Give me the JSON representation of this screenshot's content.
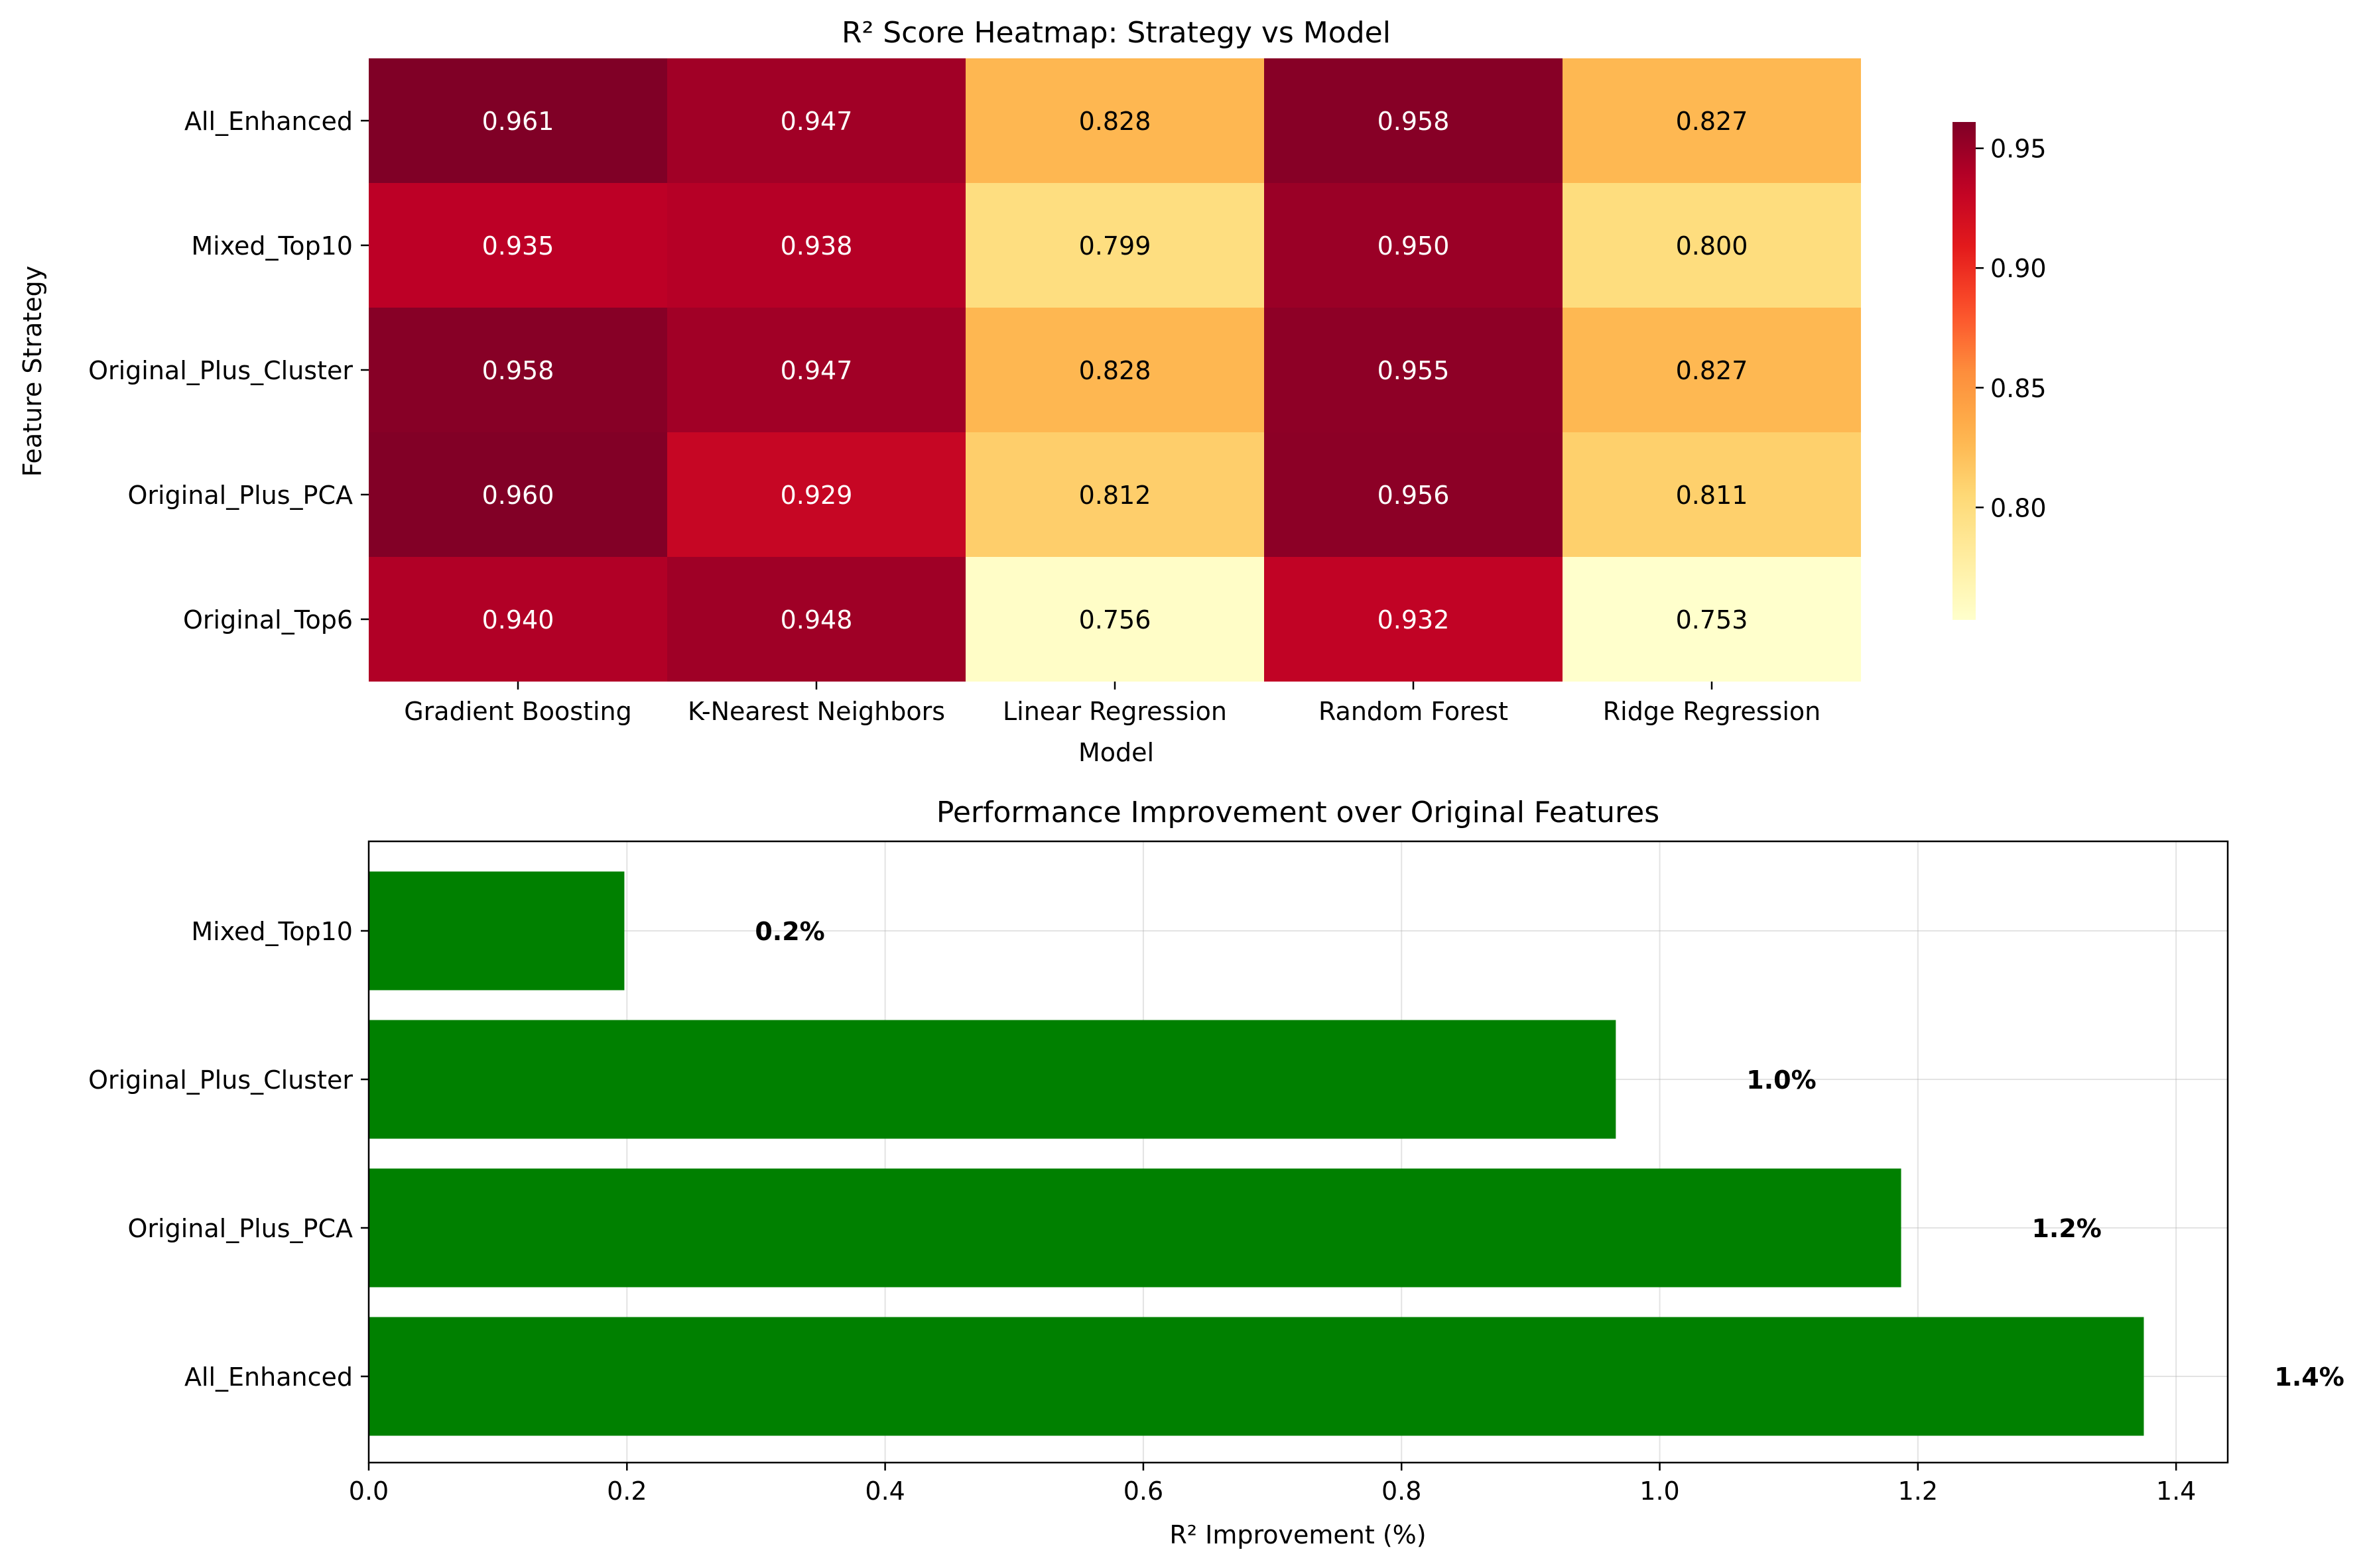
{
  "chart_data": [
    {
      "type": "heatmap",
      "title": "R² Score Heatmap: Strategy vs Model",
      "xlabel": "Model",
      "ylabel": "Feature Strategy",
      "columns": [
        "Gradient Boosting",
        "K-Nearest Neighbors",
        "Linear Regression",
        "Random Forest",
        "Ridge Regression"
      ],
      "rows": [
        "All_Enhanced",
        "Mixed_Top10",
        "Original_Plus_Cluster",
        "Original_Plus_PCA",
        "Original_Top6"
      ],
      "values": [
        [
          0.961,
          0.947,
          0.828,
          0.958,
          0.827
        ],
        [
          0.935,
          0.938,
          0.799,
          0.95,
          0.8
        ],
        [
          0.958,
          0.947,
          0.828,
          0.955,
          0.827
        ],
        [
          0.96,
          0.929,
          0.812,
          0.956,
          0.811
        ],
        [
          0.94,
          0.948,
          0.756,
          0.932,
          0.753
        ]
      ],
      "cell_labels": [
        [
          "0.961",
          "0.947",
          "0.828",
          "0.958",
          "0.827"
        ],
        [
          "0.935",
          "0.938",
          "0.799",
          "0.950",
          "0.800"
        ],
        [
          "0.958",
          "0.947",
          "0.828",
          "0.955",
          "0.827"
        ],
        [
          "0.960",
          "0.929",
          "0.812",
          "0.956",
          "0.811"
        ],
        [
          "0.940",
          "0.948",
          "0.756",
          "0.932",
          "0.753"
        ]
      ],
      "colormap": "YlOrRd",
      "colorbar": {
        "range": [
          0.753,
          0.961
        ],
        "ticks": [
          0.8,
          0.85,
          0.9,
          0.95
        ],
        "tick_labels": [
          "0.80",
          "0.85",
          "0.90",
          "0.95"
        ]
      }
    },
    {
      "type": "bar",
      "orientation": "horizontal",
      "title": "Performance Improvement over Original Features",
      "xlabel": "R² Improvement (%)",
      "ylabel": "",
      "categories": [
        "All_Enhanced",
        "Original_Plus_PCA",
        "Original_Plus_Cluster",
        "Mixed_Top10"
      ],
      "values": [
        1.375,
        1.187,
        0.966,
        0.198
      ],
      "value_labels": [
        "1.4%",
        "1.2%",
        "1.0%",
        "0.2%"
      ],
      "xlim": [
        0,
        1.44
      ],
      "x_ticks": [
        0.0,
        0.2,
        0.4,
        0.6,
        0.8,
        1.0,
        1.2,
        1.4
      ],
      "x_tick_labels": [
        "0.0",
        "0.2",
        "0.4",
        "0.6",
        "0.8",
        "1.0",
        "1.2",
        "1.4"
      ],
      "grid": true,
      "bar_color": "#008000"
    }
  ]
}
